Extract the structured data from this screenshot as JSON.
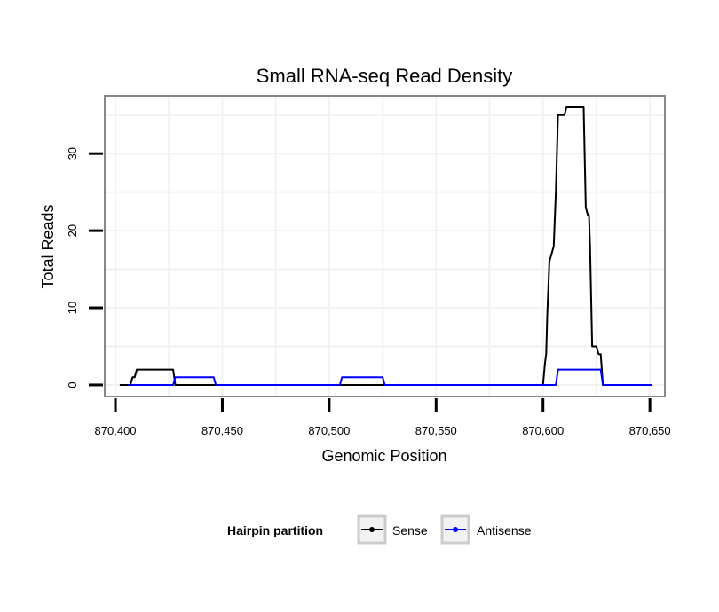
{
  "chart_data": {
    "type": "line",
    "title": "Small RNA-seq Read Density",
    "xlabel": "Genomic Position",
    "ylabel": "Total Reads",
    "xlim": [
      870395,
      870657
    ],
    "ylim": [
      -1.5,
      37.5
    ],
    "x_ticks": [
      870400,
      870450,
      870500,
      870550,
      870600,
      870650
    ],
    "x_tick_labels": [
      "870,400",
      "870,450",
      "870,500",
      "870,550",
      "870,600",
      "870,650"
    ],
    "y_ticks": [
      0,
      10,
      20,
      30
    ],
    "y_tick_labels": [
      "0",
      "10",
      "20",
      "30"
    ],
    "grid": true,
    "legend": {
      "title": "Hairpin partition",
      "position": "bottom"
    },
    "series": [
      {
        "name": "Sense",
        "color": "#000000",
        "points": [
          [
            870402,
            0
          ],
          [
            870407,
            0
          ],
          [
            870408,
            1
          ],
          [
            870409,
            1
          ],
          [
            870410,
            2
          ],
          [
            870427,
            2
          ],
          [
            870428,
            0
          ],
          [
            870600,
            0
          ],
          [
            870601,
            3
          ],
          [
            870601.5,
            4
          ],
          [
            870602,
            9
          ],
          [
            870603,
            16
          ],
          [
            870604,
            17
          ],
          [
            870605,
            18
          ],
          [
            870606,
            25
          ],
          [
            870607,
            35
          ],
          [
            870610,
            35
          ],
          [
            870611,
            36
          ],
          [
            870619,
            36
          ],
          [
            870620,
            23
          ],
          [
            870621,
            22
          ],
          [
            870621.5,
            22
          ],
          [
            870622,
            18
          ],
          [
            870623,
            5
          ],
          [
            870625,
            5
          ],
          [
            870626,
            4
          ],
          [
            870627,
            4
          ],
          [
            870628,
            0
          ],
          [
            870651,
            0
          ]
        ]
      },
      {
        "name": "Antisense",
        "color": "#0000ff",
        "points": [
          [
            870406,
            0
          ],
          [
            870427,
            0
          ],
          [
            870428,
            1
          ],
          [
            870446,
            1
          ],
          [
            870447,
            0
          ],
          [
            870505,
            0
          ],
          [
            870506,
            1
          ],
          [
            870525,
            1
          ],
          [
            870526,
            0
          ],
          [
            870606,
            0
          ],
          [
            870607,
            2
          ],
          [
            870627,
            2
          ],
          [
            870628,
            0
          ],
          [
            870651,
            0
          ]
        ]
      }
    ]
  }
}
